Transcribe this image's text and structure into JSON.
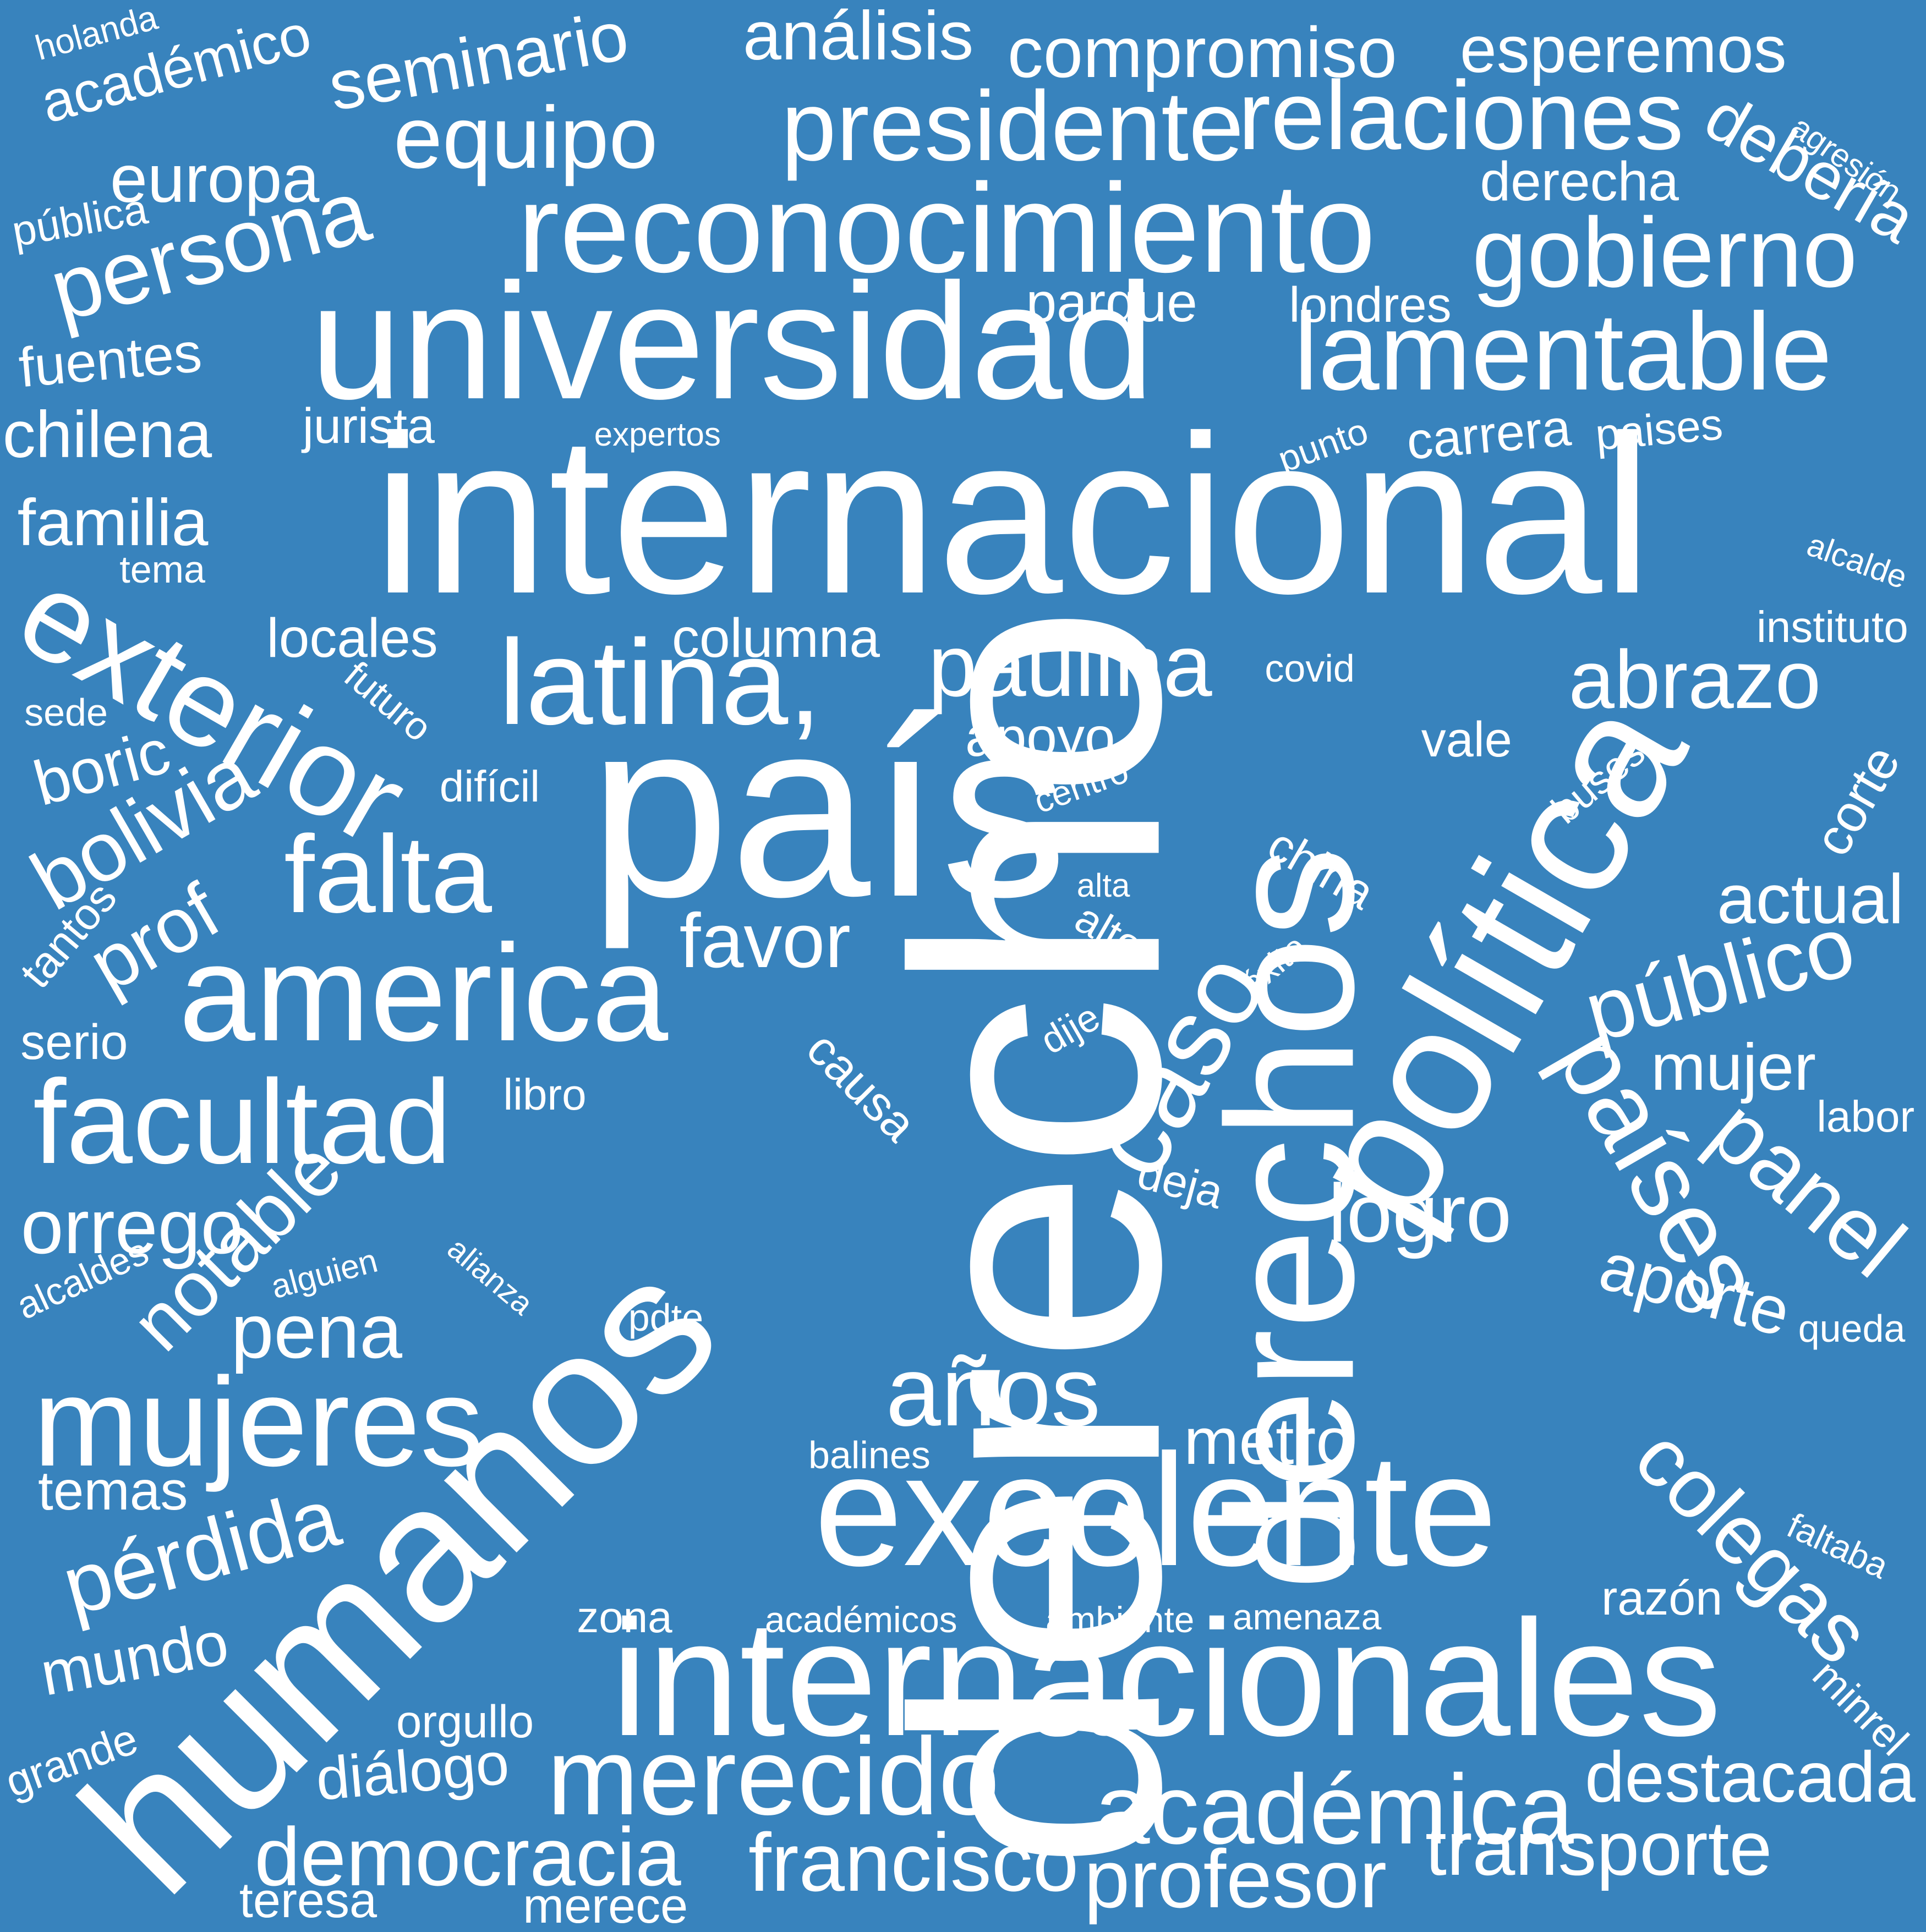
{
  "colors": {
    "background": "#3883bd",
    "text": "#ffffff"
  },
  "words": [
    {
      "text": "derecho"
    },
    {
      "text": "internacional"
    },
    {
      "text": "derechos"
    },
    {
      "text": "país"
    },
    {
      "text": "política"
    },
    {
      "text": "humanos"
    },
    {
      "text": "universidad"
    },
    {
      "text": "internacionales"
    },
    {
      "text": "excelente"
    },
    {
      "text": "reconocimiento"
    },
    {
      "text": "presidente"
    },
    {
      "text": "relaciones"
    },
    {
      "text": "latina,"
    },
    {
      "text": "america"
    },
    {
      "text": "exterior"
    },
    {
      "text": "países"
    },
    {
      "text": "lamentable"
    },
    {
      "text": "falta"
    },
    {
      "text": "caso"
    },
    {
      "text": "mujeres"
    },
    {
      "text": "merecido"
    },
    {
      "text": "facultad"
    },
    {
      "text": "académica"
    },
    {
      "text": "público"
    },
    {
      "text": "persona"
    },
    {
      "text": "gobierno"
    },
    {
      "text": "pérdida"
    },
    {
      "text": "paulina"
    },
    {
      "text": "equipo"
    },
    {
      "text": "años"
    },
    {
      "text": "francisco"
    },
    {
      "text": "notable"
    },
    {
      "text": "seminario"
    },
    {
      "text": "compromiso"
    },
    {
      "text": "colegas"
    },
    {
      "text": "profesor"
    },
    {
      "text": "bolivia"
    },
    {
      "text": "democracia"
    },
    {
      "text": "abrazo"
    },
    {
      "text": "transporte"
    },
    {
      "text": "destacada"
    },
    {
      "text": "académico"
    },
    {
      "text": "metro"
    },
    {
      "text": "mujer"
    },
    {
      "text": "orrego"
    },
    {
      "text": "logro"
    },
    {
      "text": "esperemos"
    },
    {
      "text": "análisis"
    },
    {
      "text": "panel"
    },
    {
      "text": "debería"
    },
    {
      "text": "europa"
    },
    {
      "text": "aporte"
    },
    {
      "text": "actual"
    },
    {
      "text": "mundo"
    },
    {
      "text": "chilena"
    },
    {
      "text": "favor"
    },
    {
      "text": "familia"
    },
    {
      "text": "prof"
    },
    {
      "text": "boric"
    },
    {
      "text": "pena"
    },
    {
      "text": "corte"
    },
    {
      "text": "fuentes"
    },
    {
      "text": "derecha"
    },
    {
      "text": "locales"
    },
    {
      "text": "columna"
    },
    {
      "text": "jurista"
    },
    {
      "text": "parque"
    },
    {
      "text": "londres"
    },
    {
      "text": "carrera"
    },
    {
      "text": "apoyo"
    },
    {
      "text": "diálogo"
    },
    {
      "text": "temas"
    },
    {
      "text": "teresa"
    },
    {
      "text": "merece"
    },
    {
      "text": "orgullo"
    },
    {
      "text": "holanda"
    },
    {
      "text": "pública"
    },
    {
      "text": "expertos"
    },
    {
      "text": "punto"
    },
    {
      "text": "paises"
    },
    {
      "text": "tema"
    },
    {
      "text": "instituto"
    },
    {
      "text": "alcalde"
    },
    {
      "text": "futuro"
    },
    {
      "text": "sede"
    },
    {
      "text": "covid"
    },
    {
      "text": "vale"
    },
    {
      "text": "difícil"
    },
    {
      "text": "centro"
    },
    {
      "text": "buses"
    },
    {
      "text": "china"
    },
    {
      "text": "alta"
    },
    {
      "text": "alto"
    },
    {
      "text": "éxito"
    },
    {
      "text": "tantos"
    },
    {
      "text": "serio"
    },
    {
      "text": "dije"
    },
    {
      "text": "causa"
    },
    {
      "text": "libro"
    },
    {
      "text": "deja"
    },
    {
      "text": "labor"
    },
    {
      "text": "alcaldes"
    },
    {
      "text": "alguien"
    },
    {
      "text": "alianza"
    },
    {
      "text": "pdte"
    },
    {
      "text": "queda"
    },
    {
      "text": "balines"
    },
    {
      "text": "zona"
    },
    {
      "text": "académicos"
    },
    {
      "text": "ambiente"
    },
    {
      "text": "amenaza"
    },
    {
      "text": "razón"
    },
    {
      "text": "faltaba"
    },
    {
      "text": "minrel"
    },
    {
      "text": "grande"
    },
    {
      "text": "agresión"
    }
  ]
}
